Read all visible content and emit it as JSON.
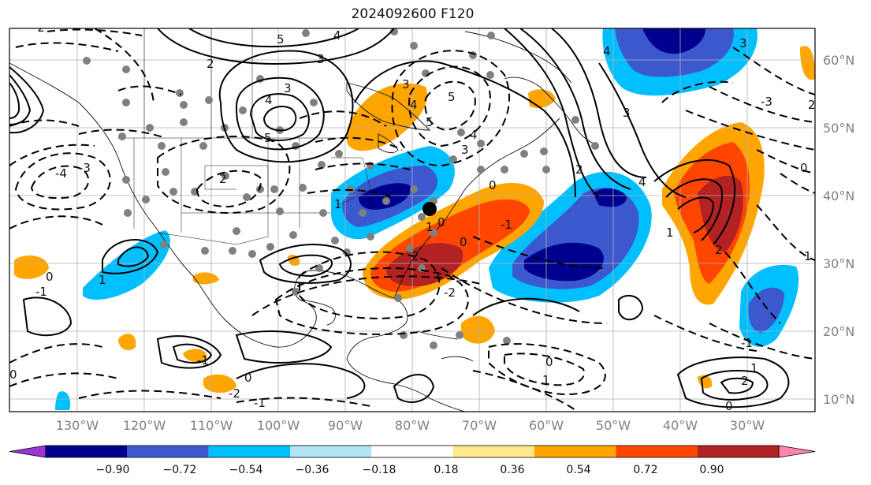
{
  "title": "2024092600 F120",
  "longitude_labels": [
    "130°W",
    "120°W",
    "110°W",
    "100°W",
    "90°W",
    "80°W",
    "70°W",
    "60°W",
    "50°W",
    "40°W",
    "30°W"
  ],
  "latitude_labels": [
    "60°N",
    "50°N",
    "40°N",
    "30°N",
    "20°N",
    "10°N"
  ],
  "colorbar": {
    "ticks": [
      "−0.90",
      "−0.72",
      "−0.54",
      "−0.36",
      "−0.18",
      "0.18",
      "0.36",
      "0.54",
      "0.72",
      "0.90"
    ],
    "colors": [
      "#9a35d6",
      "#00008f",
      "#3c58cf",
      "#00bfff",
      "#b2e3f7",
      "#ffffff",
      "#ffe98a",
      "#ffa500",
      "#ff4500",
      "#b22222",
      "#ff84b0"
    ],
    "extend": "both"
  },
  "contour_labels": [
    "5",
    "4",
    "3",
    "2",
    "3",
    "4",
    "5",
    "5",
    "4",
    "3",
    "2",
    "1",
    "0",
    "-1",
    "-2",
    "-3",
    "-4",
    "4",
    "3",
    "2",
    "1",
    "0",
    "0",
    "1",
    "2",
    "1",
    "0",
    "-1",
    "-2",
    "-3",
    "2",
    "1",
    "0",
    "-1",
    "0",
    "1",
    "0",
    "-1",
    "-2",
    "0",
    "-1",
    "2",
    "1",
    "0",
    "3",
    "4",
    "5",
    "2",
    "3",
    "4"
  ],
  "map_colors": {
    "negative_strong": "#00008f",
    "negative_mid": "#3c58cf",
    "negative_weak": "#00bfff",
    "positive_weak": "#ffa500",
    "positive_mid": "#ff4500",
    "positive_strong": "#b22222",
    "station_dot": "#808080",
    "grid": "#aaaaaa"
  }
}
